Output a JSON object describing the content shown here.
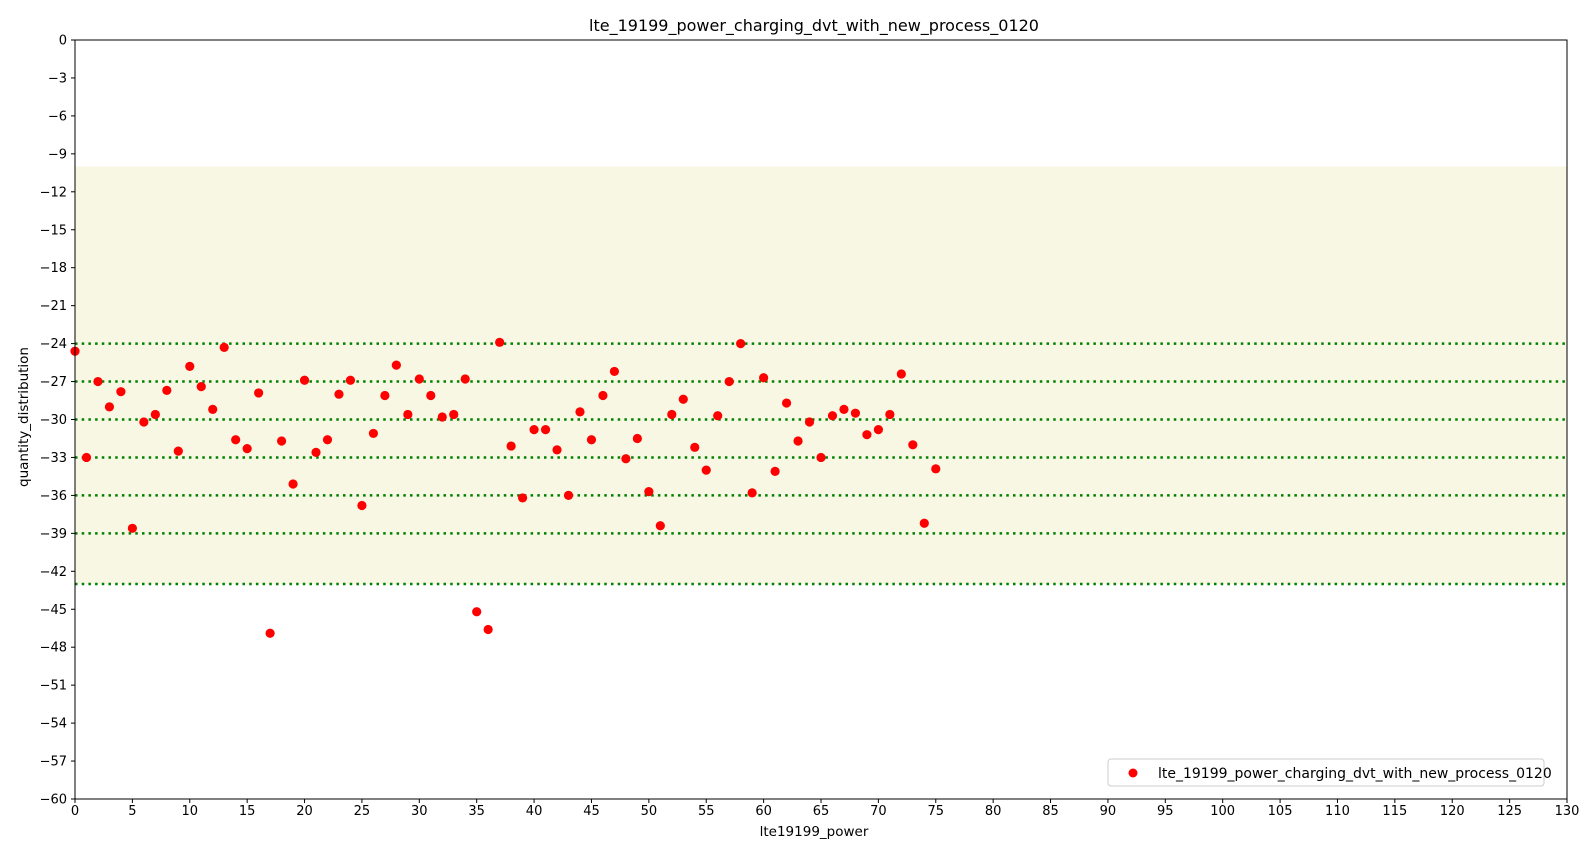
{
  "chart_data": {
    "type": "scatter",
    "title": "lte_19199_power_charging_dvt_with_new_process_0120",
    "xlabel": "lte19199_power",
    "ylabel": "quantity_distribution",
    "xlim": [
      0,
      130
    ],
    "ylim": [
      -60,
      0
    ],
    "x_ticks": [
      0,
      5,
      10,
      15,
      20,
      25,
      30,
      35,
      40,
      45,
      50,
      55,
      60,
      65,
      70,
      75,
      80,
      85,
      90,
      95,
      100,
      105,
      110,
      115,
      120,
      125,
      130
    ],
    "y_ticks": [
      0,
      -3,
      -6,
      -9,
      -12,
      -15,
      -18,
      -21,
      -24,
      -27,
      -30,
      -33,
      -36,
      -39,
      -42,
      -45,
      -48,
      -51,
      -54,
      -57,
      -60
    ],
    "y_tick_labels": [
      "0",
      "−3",
      "−6",
      "−9",
      "−12",
      "−15",
      "−18",
      "−21",
      "−24",
      "−27",
      "−30",
      "−33",
      "−36",
      "−39",
      "−42",
      "−45",
      "−48",
      "−51",
      "−54",
      "−57",
      "−60"
    ],
    "shaded_band": {
      "y_from": -43,
      "y_to": -10,
      "color": "#f7f7e3"
    },
    "reference_lines": [
      {
        "y": -24,
        "color": "#008000",
        "style": "dotted"
      },
      {
        "y": -27,
        "color": "#008000",
        "style": "dotted"
      },
      {
        "y": -30,
        "color": "#008000",
        "style": "dotted"
      },
      {
        "y": -33,
        "color": "#008000",
        "style": "dotted"
      },
      {
        "y": -36,
        "color": "#008000",
        "style": "dotted"
      },
      {
        "y": -39,
        "color": "#008000",
        "style": "dotted"
      },
      {
        "y": -43,
        "color": "#008000",
        "style": "dotted"
      }
    ],
    "legend_position": "lower-right",
    "grid": false,
    "series": [
      {
        "name": "lte_19199_power_charging_dvt_with_new_process_0120",
        "color": "#ff0000",
        "x": [
          0,
          1,
          2,
          3,
          4,
          5,
          6,
          7,
          8,
          9,
          10,
          11,
          12,
          13,
          14,
          15,
          16,
          17,
          18,
          19,
          20,
          21,
          22,
          23,
          24,
          25,
          26,
          27,
          28,
          29,
          30,
          31,
          32,
          33,
          34,
          35,
          36,
          37,
          38,
          39,
          40,
          41,
          42,
          43,
          44,
          45,
          46,
          47,
          48,
          49,
          50,
          51,
          52,
          53,
          54,
          55,
          56,
          57,
          58,
          59,
          60,
          61,
          62,
          63,
          64,
          65,
          66,
          67,
          68,
          69,
          70,
          71,
          72,
          73,
          74,
          75
        ],
        "y": [
          -24.6,
          -33.0,
          -27.0,
          -29.0,
          -27.8,
          -38.6,
          -30.2,
          -29.6,
          -27.7,
          -32.5,
          -25.8,
          -27.4,
          -29.2,
          -24.3,
          -31.6,
          -32.3,
          -27.9,
          -46.9,
          -31.7,
          -35.1,
          -26.9,
          -32.6,
          -31.6,
          -28.0,
          -26.9,
          -36.8,
          -31.1,
          -28.1,
          -25.7,
          -29.6,
          -26.8,
          -28.1,
          -29.8,
          -29.6,
          -26.8,
          -45.2,
          -46.6,
          -23.9,
          -32.1,
          -36.2,
          -30.8,
          -30.8,
          -32.4,
          -36.0,
          -29.4,
          -31.6,
          -28.1,
          -26.2,
          -33.1,
          -31.5,
          -35.7,
          -38.4,
          -29.6,
          -28.4,
          -32.2,
          -34.0,
          -29.7,
          -27.0,
          -24.0,
          -35.8,
          -26.7,
          -34.1,
          -28.7,
          -31.7,
          -30.2,
          -33.0,
          -29.7,
          -29.2,
          -29.5,
          -31.2,
          -30.8,
          -29.6,
          -26.4,
          -32.0,
          -38.2,
          -33.9
        ]
      }
    ]
  }
}
